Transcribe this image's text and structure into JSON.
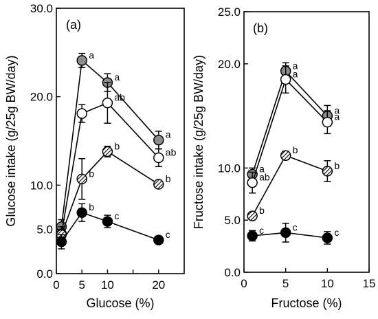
{
  "chart_data": [
    {
      "type": "line",
      "panel_label": "(a)",
      "xlabel": "Glucose (%)",
      "ylabel": "Glucose intake (g/25g BW/day)",
      "xlim": [
        0,
        25
      ],
      "ylim": [
        0,
        30
      ],
      "xticks": [
        0,
        5,
        10,
        15,
        20
      ],
      "xtick_labels": [
        "0",
        "5",
        "10",
        "",
        "20"
      ],
      "yticks": [
        0,
        5,
        10,
        20,
        30
      ],
      "ytick_labels": [
        "0.0",
        "5.0",
        "10.0",
        "20.0",
        "30.0"
      ],
      "grid": false,
      "series": [
        {
          "style": "gray",
          "x": [
            1,
            5,
            10,
            20
          ],
          "y": [
            5.3,
            24.1,
            21.6,
            15.1
          ],
          "err": [
            0.8,
            0.8,
            1.0,
            1.0
          ],
          "letters": [
            "",
            "a",
            "a",
            "a"
          ]
        },
        {
          "style": "open",
          "x": [
            1,
            5,
            10,
            20
          ],
          "y": [
            4.5,
            18.1,
            19.3,
            13.1
          ],
          "err": [
            0.8,
            1.0,
            2.3,
            1.0
          ],
          "letters": [
            "",
            "",
            "ab",
            "ab"
          ]
        },
        {
          "style": "hatched",
          "x": [
            1,
            5,
            10,
            20
          ],
          "y": [
            4.4,
            10.7,
            13.8,
            10.1
          ],
          "err": [
            0.6,
            2.3,
            0.6,
            0.4
          ],
          "letters": [
            "",
            "b",
            "b",
            "b"
          ]
        },
        {
          "style": "black",
          "x": [
            1,
            5,
            10,
            20
          ],
          "y": [
            3.6,
            6.9,
            5.9,
            3.8
          ],
          "err": [
            0.8,
            1.0,
            0.7,
            0.3
          ],
          "letters": [
            "",
            "b",
            "c",
            "c"
          ]
        }
      ]
    },
    {
      "type": "line",
      "panel_label": "(b)",
      "xlabel": "Fructose (%)",
      "ylabel": "Fructose intake (g/25g BW/day)",
      "xlim": [
        0,
        15
      ],
      "ylim": [
        0,
        25
      ],
      "xticks": [
        0,
        5,
        10,
        15
      ],
      "xtick_labels": [
        "0",
        "5",
        "10",
        "15"
      ],
      "yticks": [
        0,
        5,
        10,
        20,
        25
      ],
      "ytick_labels": [
        "0.0",
        "5.0",
        "10.0",
        "20.0",
        "25.0"
      ],
      "grid": false,
      "series": [
        {
          "style": "gray",
          "x": [
            1,
            5,
            10
          ],
          "y": [
            9.4,
            19.3,
            15.0
          ],
          "err": [
            0.6,
            0.8,
            1.0
          ],
          "letters": [
            "a",
            "a",
            "a"
          ]
        },
        {
          "style": "open",
          "x": [
            1,
            5,
            10
          ],
          "y": [
            8.6,
            18.5,
            14.4
          ],
          "err": [
            1.0,
            1.3,
            1.1
          ],
          "letters": [
            "ab",
            "a",
            "a"
          ]
        },
        {
          "style": "hatched",
          "x": [
            1,
            5,
            10
          ],
          "y": [
            5.4,
            11.2,
            9.7
          ],
          "err": [
            0.3,
            0.4,
            1.0
          ],
          "letters": [
            "b",
            "b",
            "b"
          ]
        },
        {
          "style": "black",
          "x": [
            1,
            5,
            10
          ],
          "y": [
            3.5,
            3.8,
            3.3
          ],
          "err": [
            0.5,
            0.9,
            0.6
          ],
          "letters": [
            "c",
            "c",
            "c"
          ]
        }
      ]
    }
  ]
}
